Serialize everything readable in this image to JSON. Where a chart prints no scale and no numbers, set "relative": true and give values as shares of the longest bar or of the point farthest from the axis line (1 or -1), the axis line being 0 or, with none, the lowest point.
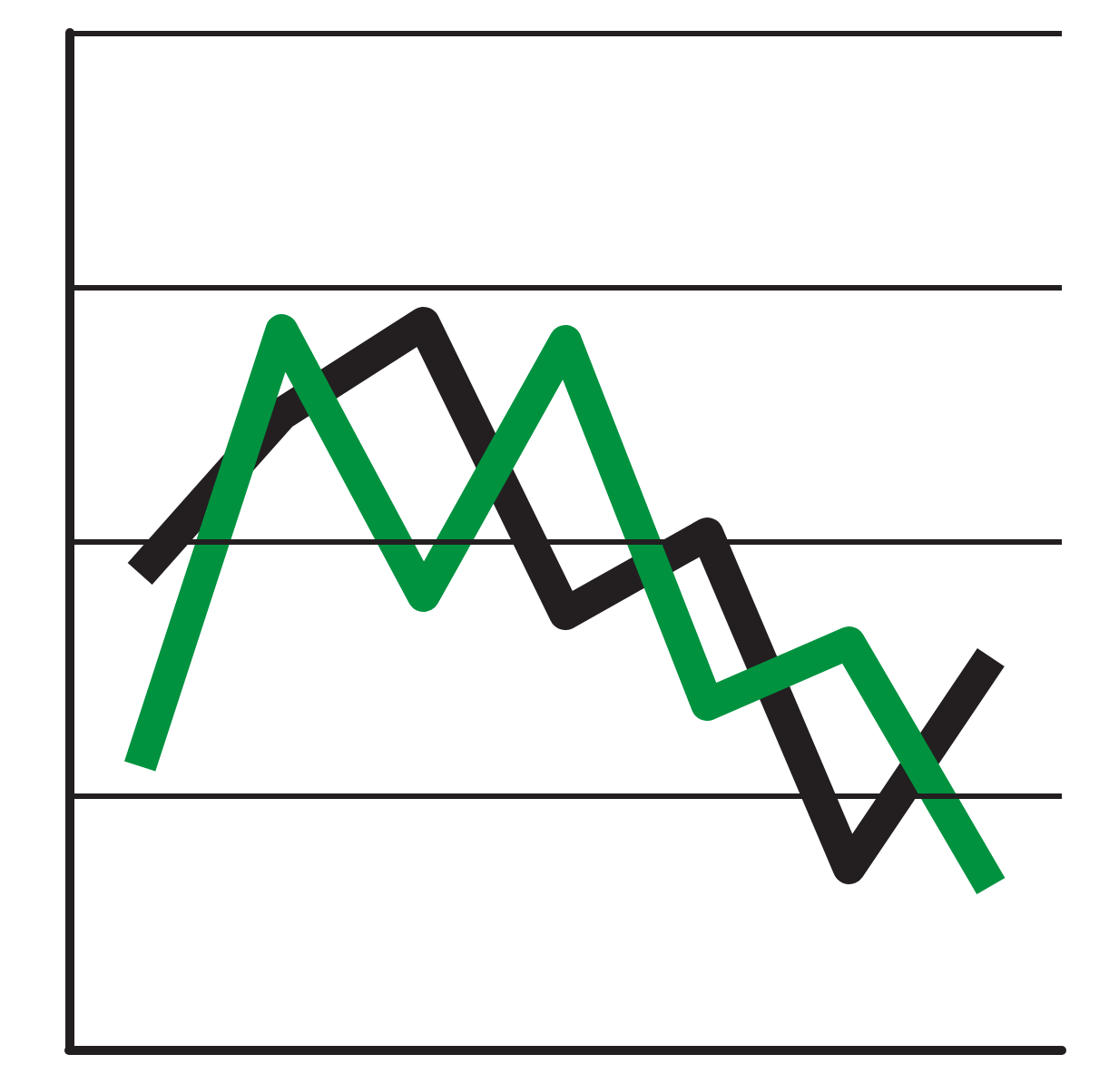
{
  "chart_data": {
    "type": "line",
    "relative": true,
    "marker": "none",
    "line_style": "solid",
    "ref_lines": [
      {
        "axis": "y",
        "value": 0.35,
        "color": "#231f20"
      },
      {
        "axis": "y",
        "value": 0.7,
        "color": "#231f20"
      },
      {
        "axis": "y",
        "value": 1.05,
        "color": "#231f20"
      },
      {
        "axis": "y",
        "value": 1.4,
        "color": "#231f20"
      }
    ],
    "categories": [
      null,
      null,
      null,
      null,
      null,
      null,
      null
    ],
    "series": [
      {
        "color": "#231f20",
        "values": [
          0.655,
          0.875,
          1,
          0.6,
          0.71,
          0.25,
          0.54
        ]
      },
      {
        "color": "#00923f",
        "values": [
          0.39,
          0.99,
          0.625,
          0.975,
          0.475,
          0.56,
          0.225
        ]
      }
    ]
  }
}
